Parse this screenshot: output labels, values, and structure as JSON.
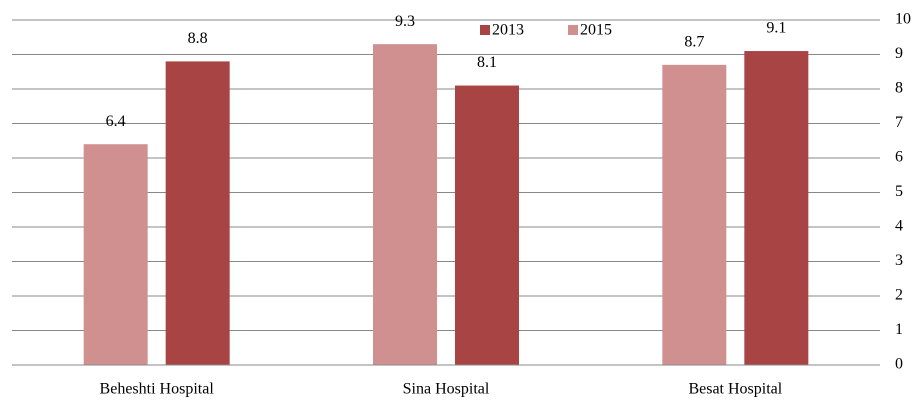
{
  "chart_data": {
    "type": "bar",
    "categories": [
      "Beheshti Hospital",
      "Sina Hospital",
      "Besat Hospital"
    ],
    "series": [
      {
        "name": "2013",
        "color": "#a84444",
        "values": [
          8.8,
          8.1,
          9.1
        ]
      },
      {
        "name": "2015",
        "color": "#d19090",
        "values": [
          6.4,
          9.3,
          8.7
        ]
      }
    ],
    "ylim": [
      0,
      10
    ],
    "yticks": [
      0,
      1,
      2,
      3,
      4,
      5,
      6,
      7,
      8,
      9,
      10
    ],
    "grid": true,
    "legend": "top"
  }
}
